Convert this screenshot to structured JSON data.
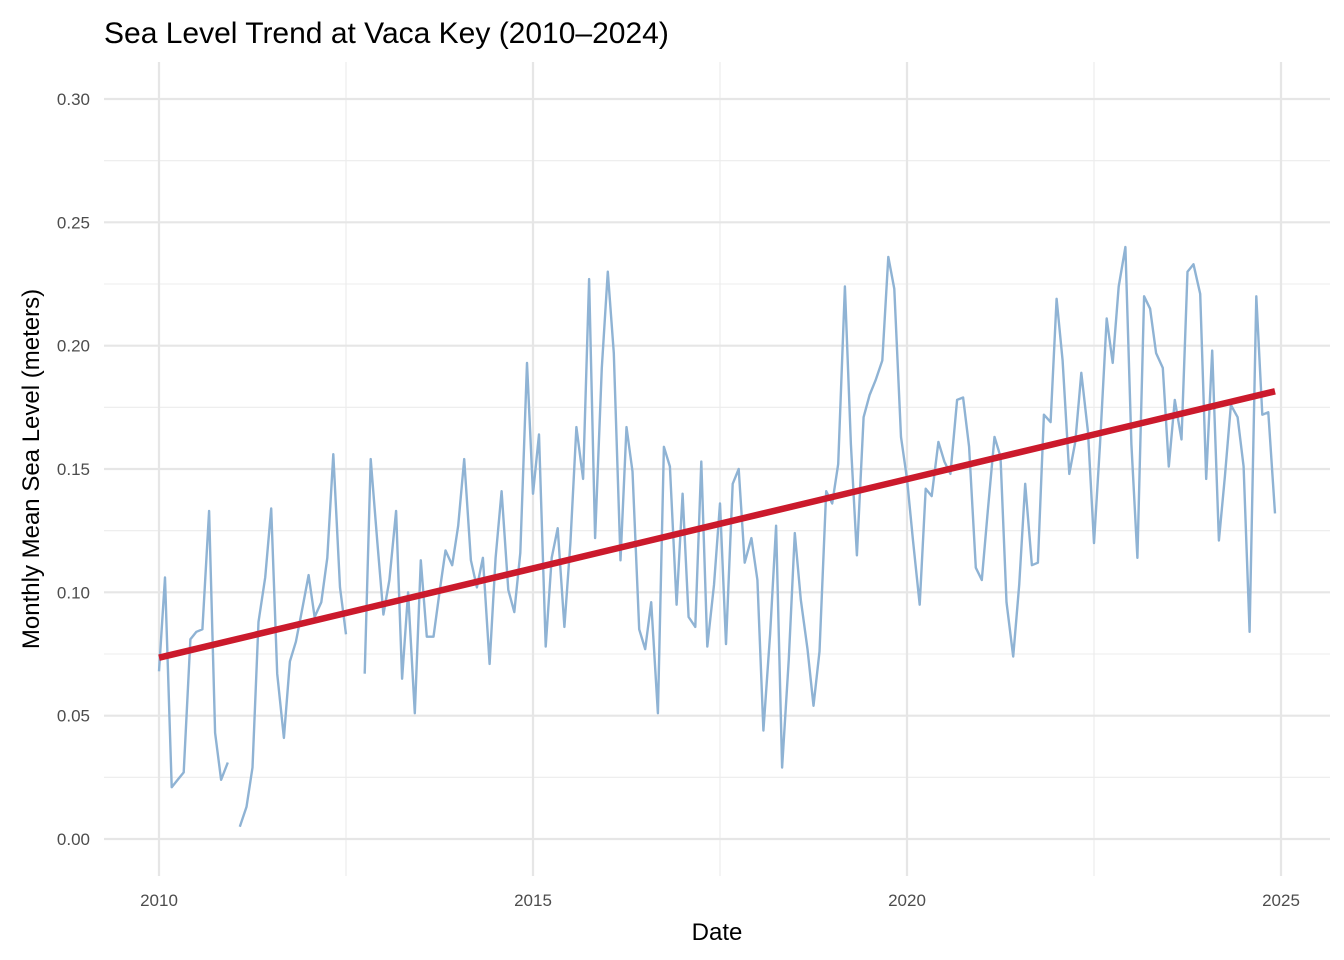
{
  "chart_data": {
    "type": "line",
    "title": "Sea Level Trend at Vaca Key (2010–2024)",
    "xlabel": "Date",
    "ylabel": "Monthly Mean Sea Level (meters)",
    "xlim": [
      2009.35,
      2025.4
    ],
    "ylim": [
      -0.015,
      0.315
    ],
    "x_ticks": [
      2010,
      2015,
      2020,
      2025
    ],
    "x_tick_labels": [
      "2010",
      "2015",
      "2020",
      "2025"
    ],
    "y_ticks": [
      0.0,
      0.05,
      0.1,
      0.15,
      0.2,
      0.25,
      0.3
    ],
    "y_tick_labels": [
      "0.00",
      "0.05",
      "0.10",
      "0.15",
      "0.20",
      "0.25",
      "0.30"
    ],
    "grid": true,
    "legend": "none",
    "series": [
      {
        "color": "#8fb3d4",
        "style": "monthly line with gaps",
        "x": [
          2010.0,
          2010.08,
          2010.17,
          2010.25,
          2010.33,
          2010.42,
          2010.5,
          2010.58,
          2010.67,
          2010.75,
          2010.83,
          2010.92,
          2011.0,
          2011.08,
          2011.17,
          2011.25,
          2011.33,
          2011.42,
          2011.5,
          2011.58,
          2011.67,
          2011.75,
          2011.83,
          2011.92,
          2012.0,
          2012.08,
          2012.17,
          2012.25,
          2012.33,
          2012.42,
          2012.5,
          2012.58,
          2012.67,
          2012.75,
          2012.83,
          2012.92,
          2013.0,
          2013.08,
          2013.17,
          2013.25,
          2013.33,
          2013.42,
          2013.5,
          2013.58,
          2013.67,
          2013.75,
          2013.83,
          2013.92,
          2014.0,
          2014.08,
          2014.17,
          2014.25,
          2014.33,
          2014.42,
          2014.5,
          2014.58,
          2014.67,
          2014.75,
          2014.83,
          2014.92,
          2015.0,
          2015.08,
          2015.17,
          2015.25,
          2015.33,
          2015.42,
          2015.5,
          2015.58,
          2015.67,
          2015.75,
          2015.83,
          2015.92,
          2016.0,
          2016.08,
          2016.17,
          2016.25,
          2016.33,
          2016.42,
          2016.5,
          2016.58,
          2016.67,
          2016.75,
          2016.83,
          2016.92,
          2017.0,
          2017.08,
          2017.17,
          2017.25,
          2017.33,
          2017.42,
          2017.5,
          2017.58,
          2017.67,
          2017.75,
          2017.83,
          2017.92,
          2018.0,
          2018.08,
          2018.17,
          2018.25,
          2018.33,
          2018.42,
          2018.5,
          2018.58,
          2018.67,
          2018.75,
          2018.83,
          2018.92,
          2019.0,
          2019.08,
          2019.17,
          2019.25,
          2019.33,
          2019.42,
          2019.5,
          2019.58,
          2019.67,
          2019.75,
          2019.83,
          2019.92,
          2020.0,
          2020.08,
          2020.17,
          2020.25,
          2020.33,
          2020.42,
          2020.5,
          2020.58,
          2020.67,
          2020.75,
          2020.83,
          2020.92,
          2021.0,
          2021.08,
          2021.17,
          2021.25,
          2021.33,
          2021.42,
          2021.5,
          2021.58,
          2021.67,
          2021.75,
          2021.83,
          2021.92,
          2022.0,
          2022.08,
          2022.17,
          2022.25,
          2022.33,
          2022.42,
          2022.5,
          2022.58,
          2022.67,
          2022.75,
          2022.83,
          2022.92,
          2023.0,
          2023.08,
          2023.17,
          2023.25,
          2023.33,
          2023.42,
          2023.5,
          2023.58,
          2023.67,
          2023.75,
          2023.83,
          2023.92,
          2024.0,
          2024.08,
          2024.17,
          2024.25,
          2024.33,
          2024.42,
          2024.5,
          2024.58,
          2024.67,
          2024.75,
          2024.83,
          2024.92
        ],
        "y": [
          0.068,
          0.106,
          0.021,
          0.024,
          0.027,
          0.081,
          0.084,
          0.085,
          0.133,
          0.043,
          0.024,
          0.031,
          null,
          0.005,
          0.013,
          0.029,
          0.088,
          0.106,
          0.134,
          0.067,
          0.041,
          0.072,
          0.08,
          0.094,
          0.107,
          0.09,
          0.096,
          0.114,
          0.156,
          0.102,
          0.083,
          null,
          null,
          0.067,
          0.154,
          0.12,
          0.091,
          0.105,
          0.133,
          0.065,
          0.1,
          0.051,
          0.113,
          0.082,
          0.082,
          0.1,
          0.117,
          0.111,
          0.127,
          0.154,
          0.113,
          0.102,
          0.114,
          0.071,
          0.114,
          0.141,
          0.101,
          0.092,
          0.116,
          0.193,
          0.14,
          0.164,
          0.078,
          0.114,
          0.126,
          0.086,
          0.12,
          0.167,
          0.146,
          0.227,
          0.122,
          0.191,
          0.23,
          0.197,
          0.113,
          0.167,
          0.149,
          0.085,
          0.077,
          0.096,
          0.051,
          0.159,
          0.151,
          0.095,
          0.14,
          0.09,
          0.086,
          0.153,
          0.078,
          0.103,
          0.136,
          0.079,
          0.144,
          0.15,
          0.112,
          0.122,
          0.105,
          0.044,
          0.083,
          0.127,
          0.029,
          0.073,
          0.124,
          0.097,
          0.077,
          0.054,
          0.076,
          0.141,
          0.136,
          0.152,
          0.224,
          0.16,
          0.115,
          0.171,
          0.18,
          0.186,
          0.194,
          0.236,
          0.223,
          0.163,
          0.146,
          0.121,
          0.095,
          0.142,
          0.139,
          0.161,
          0.153,
          0.148,
          0.178,
          0.179,
          0.159,
          0.11,
          0.105,
          0.133,
          0.163,
          0.155,
          0.096,
          0.074,
          0.103,
          0.144,
          0.111,
          0.112,
          0.172,
          0.169,
          0.219,
          0.194,
          0.148,
          0.161,
          0.189,
          0.165,
          0.12,
          0.16,
          0.211,
          0.193,
          0.224,
          0.24,
          0.16,
          0.114,
          0.22,
          0.215,
          0.197,
          0.191,
          0.151,
          0.178,
          0.162,
          0.23,
          0.233,
          0.221,
          0.146,
          0.198,
          0.121,
          0.147,
          0.176,
          0.171,
          0.151,
          0.084,
          0.22,
          0.172,
          0.173,
          0.132
        ]
      },
      {
        "color": "#cb1a2c",
        "style": "linear trend",
        "x": [
          2010.0,
          2024.92
        ],
        "y": [
          0.0735,
          0.1815
        ]
      }
    ]
  }
}
